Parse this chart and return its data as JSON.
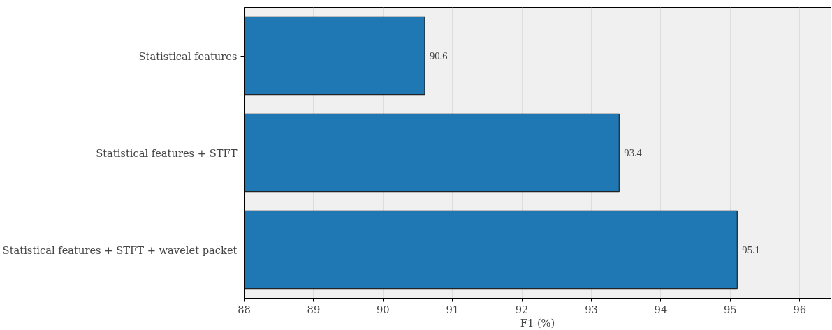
{
  "chart_data": {
    "type": "bar",
    "orientation": "horizontal",
    "xlabel": "F1 (%)",
    "categories": [
      "Statistical features",
      "Statistical features + STFT",
      "Statistical features + STFT + wavelet packet"
    ],
    "values": [
      90.6,
      93.4,
      95.1
    ],
    "color": "#1f77b4",
    "xlim": [
      88,
      96.45
    ],
    "xticks": [
      88,
      89,
      90,
      91,
      92,
      93,
      94,
      95,
      96
    ],
    "grid": "x",
    "data_labels": true
  }
}
